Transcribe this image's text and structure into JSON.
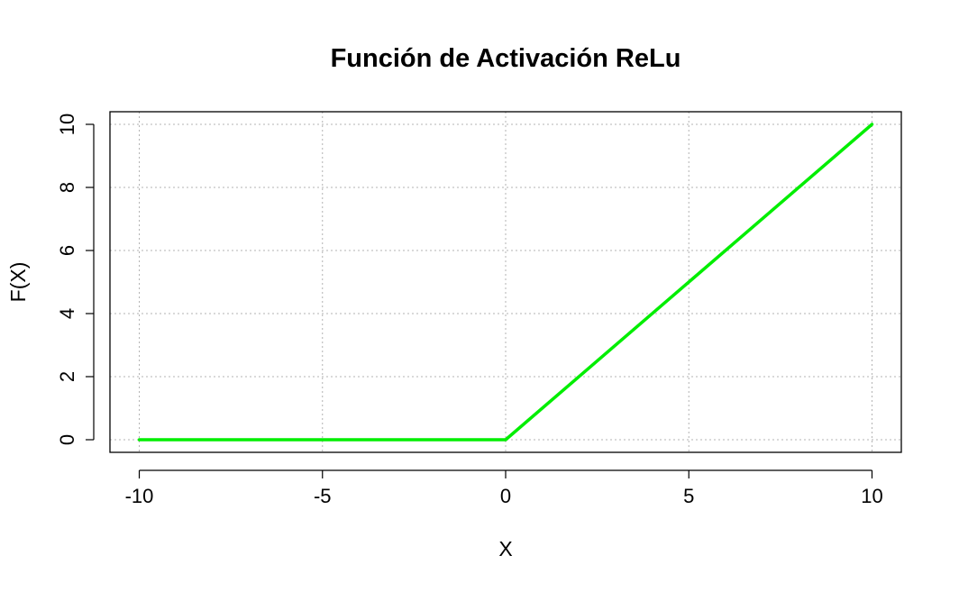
{
  "chart_data": {
    "type": "line",
    "title": "Función de Activación ReLu",
    "xlabel": "X",
    "ylabel": "F(X)",
    "xlim": [
      -10.8,
      10.8
    ],
    "ylim": [
      -0.4,
      10.4
    ],
    "x_ticks": [
      -10,
      -5,
      0,
      5,
      10
    ],
    "y_ticks": [
      0,
      2,
      4,
      6,
      8,
      10
    ],
    "grid": true,
    "series": [
      {
        "color": "#00ee00",
        "x": [
          -10,
          -5,
          0,
          5,
          10
        ],
        "y": [
          0,
          0,
          0,
          5,
          10
        ]
      }
    ]
  }
}
